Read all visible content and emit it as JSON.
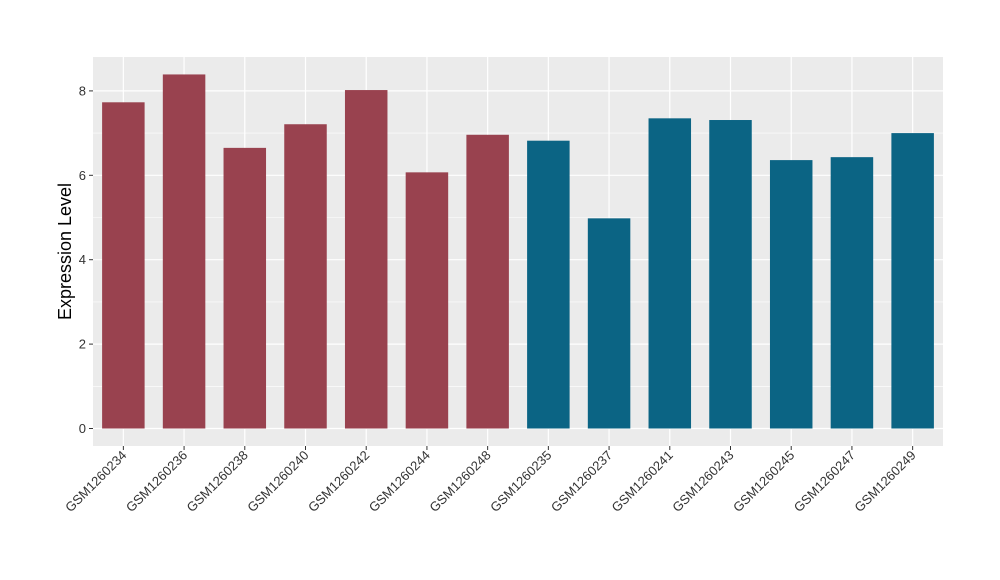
{
  "chart_data": {
    "type": "bar",
    "title": "",
    "xlabel": "",
    "ylabel": "Expression Level",
    "ylim": [
      0,
      8.8
    ],
    "yticks": [
      0,
      2,
      4,
      6,
      8
    ],
    "grid": true,
    "categories": [
      "GSM1260234",
      "GSM1260236",
      "GSM1260238",
      "GSM1260240",
      "GSM1260242",
      "GSM1260244",
      "GSM1260248",
      "GSM1260235",
      "GSM1260237",
      "GSM1260241",
      "GSM1260243",
      "GSM1260245",
      "GSM1260247",
      "GSM1260249"
    ],
    "values": [
      7.73,
      8.39,
      6.65,
      7.21,
      8.02,
      6.07,
      6.96,
      6.82,
      4.98,
      7.35,
      7.31,
      6.36,
      6.43,
      7.0
    ],
    "groups": [
      0,
      0,
      0,
      0,
      0,
      0,
      0,
      1,
      1,
      1,
      1,
      1,
      1,
      1
    ],
    "group_colors": [
      "#99424f",
      "#0b6484"
    ],
    "panel_background": "#ebebeb",
    "grid_color": "#ffffff"
  }
}
